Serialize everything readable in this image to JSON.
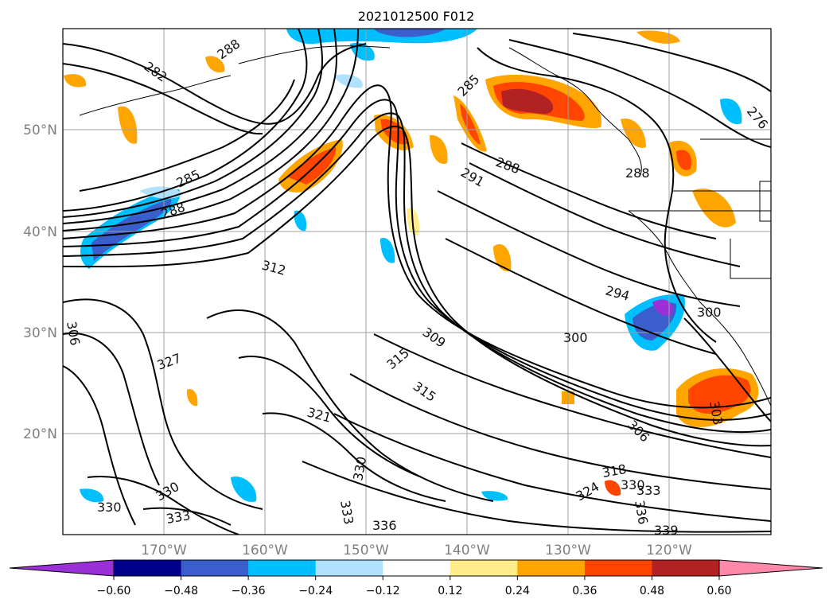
{
  "title": "2021012500 F012",
  "map": {
    "lat_labels": [
      "50°N",
      "40°N",
      "30°N",
      "20°N"
    ],
    "lon_labels": [
      "170°W",
      "160°W",
      "150°W",
      "140°W",
      "130°W",
      "120°W"
    ],
    "contour_labels": [
      "282",
      "288",
      "285",
      "288",
      "276",
      "285",
      "291",
      "288",
      "288",
      "312",
      "294",
      "300",
      "300",
      "309",
      "315",
      "315",
      "327",
      "306",
      "321",
      "306",
      "303",
      "330",
      "330",
      "330",
      "333",
      "336",
      "333",
      "336",
      "318",
      "324",
      "330",
      "333",
      "339"
    ]
  },
  "colorbar": {
    "ticks": [
      "−0.60",
      "−0.48",
      "−0.36",
      "−0.24",
      "−0.12",
      "0.12",
      "0.24",
      "0.36",
      "0.48",
      "0.60"
    ],
    "colors": [
      "#9b30d9",
      "#00008b",
      "#3a5fcd",
      "#00bfff",
      "#b0e2ff",
      "#ffffff",
      "#ffec8b",
      "#ffa500",
      "#ff4500",
      "#b22222",
      "#ff88aa"
    ]
  }
}
